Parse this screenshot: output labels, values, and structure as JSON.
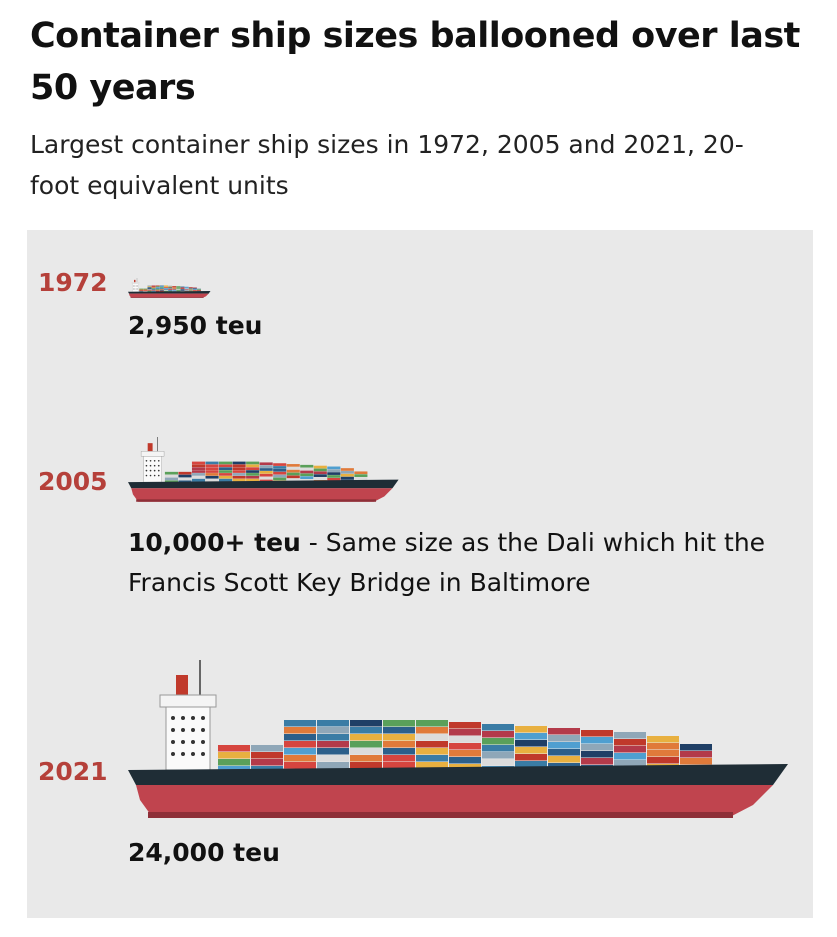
{
  "header": {
    "title": "Container ship sizes ballooned over last 50 years",
    "subtitle": "Largest container ship sizes in 1972, 2005 and 2021, 20-foot equivalent units"
  },
  "items": [
    {
      "year": "1972",
      "capacity": "2,950 teu"
    },
    {
      "year": "2005",
      "capacity": "10,000+ teu",
      "note": "- Same size as the Dali which hit the Francis Scott Key Bridge in Baltimore"
    },
    {
      "year": "2021",
      "capacity": "24,000 teu"
    }
  ]
}
